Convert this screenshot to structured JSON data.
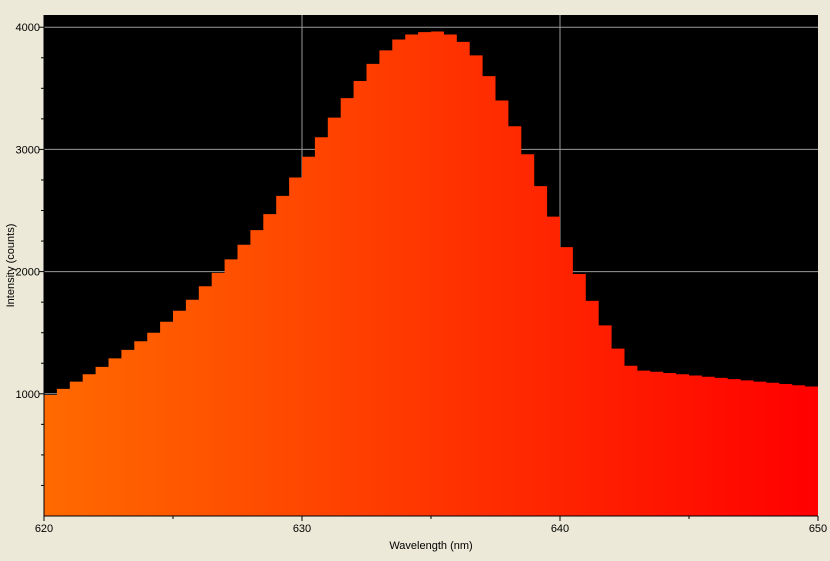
{
  "chart_data": {
    "type": "area",
    "title": "",
    "xlabel": "Wavelength (nm)",
    "ylabel": "Intensity (counts)",
    "xlim": [
      620,
      650
    ],
    "ylim": [
      0,
      4100
    ],
    "x_ticks": [
      620,
      630,
      640,
      650
    ],
    "y_ticks": [
      1000,
      2000,
      3000,
      4000
    ],
    "grid": true,
    "legend": "none",
    "colors": {
      "background": "#000000",
      "grid": "#9a9a9a",
      "fill_start": "#ff6a00",
      "fill_end": "#ff0000",
      "frame": "#ece9d8"
    },
    "series": [
      {
        "x": [
          620.0,
          620.5,
          621.0,
          621.5,
          622.0,
          622.5,
          623.0,
          623.5,
          624.0,
          624.5,
          625.0,
          625.5,
          626.0,
          626.5,
          627.0,
          627.5,
          628.0,
          628.5,
          629.0,
          629.5,
          630.0,
          630.5,
          631.0,
          631.5,
          632.0,
          632.5,
          633.0,
          633.5,
          634.0,
          634.5,
          635.0,
          635.5,
          636.0,
          636.5,
          637.0,
          637.5,
          638.0,
          638.5,
          639.0,
          639.5,
          640.0,
          640.5,
          641.0,
          641.5,
          642.0,
          642.5,
          643.0,
          643.5,
          644.0,
          644.5,
          645.0,
          645.5,
          646.0,
          646.5,
          647.0,
          647.5,
          648.0,
          648.5,
          649.0,
          649.5,
          650.0
        ],
        "values": [
          990,
          1040,
          1100,
          1160,
          1220,
          1290,
          1360,
          1430,
          1500,
          1590,
          1680,
          1770,
          1880,
          1990,
          2100,
          2220,
          2340,
          2470,
          2620,
          2770,
          2940,
          3100,
          3260,
          3420,
          3560,
          3700,
          3810,
          3900,
          3940,
          3960,
          3965,
          3940,
          3880,
          3770,
          3600,
          3400,
          3190,
          2960,
          2700,
          2450,
          2200,
          1980,
          1760,
          1560,
          1370,
          1230,
          1190,
          1180,
          1170,
          1160,
          1150,
          1140,
          1130,
          1120,
          1110,
          1100,
          1090,
          1080,
          1070,
          1060,
          1050
        ]
      }
    ]
  }
}
